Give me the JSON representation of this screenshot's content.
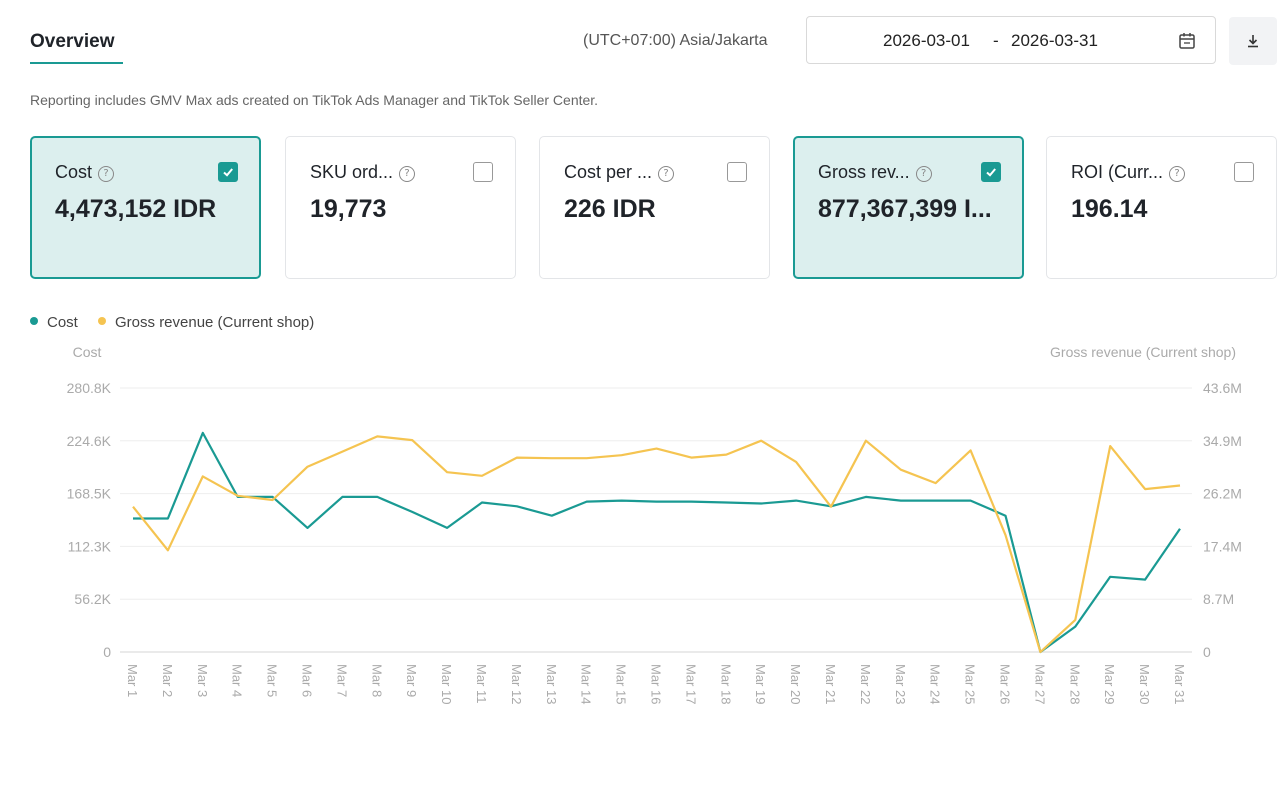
{
  "header": {
    "tab_title": "Overview",
    "timezone": "(UTC+07:00) Asia/Jakarta",
    "date_start": "2026-03-01",
    "date_separator": "-",
    "date_end": "2026-03-31"
  },
  "note": "Reporting includes GMV Max ads created on TikTok Ads Manager and TikTok Seller Center.",
  "cards": [
    {
      "label": "Cost",
      "value": "4,473,152 IDR",
      "checked": true
    },
    {
      "label": "SKU ord...",
      "value": "19,773",
      "checked": false
    },
    {
      "label": "Cost per ...",
      "value": "226 IDR",
      "checked": false
    },
    {
      "label": "Gross rev...",
      "value": "877,367,399 I...",
      "checked": true
    },
    {
      "label": "ROI (Curr...",
      "value": "196.14",
      "checked": false
    }
  ],
  "icons": {
    "calendar": "calendar-icon",
    "download": "download-icon",
    "help": "help-icon",
    "checkbox": "checkbox-icon"
  },
  "colors": {
    "accent": "#1a9a93",
    "cost_series": "#1a9a93",
    "revenue_series": "#f5c451",
    "card_active_bg": "#dcefee"
  },
  "chart_data": {
    "type": "line",
    "legend_position": "top-left",
    "grid": true,
    "left_axis_title": "Cost",
    "right_axis_title": "Gross revenue (Current shop)",
    "left_ticks": [
      "0",
      "56.2K",
      "112.3K",
      "168.5K",
      "224.6K",
      "280.8K"
    ],
    "right_ticks": [
      "0",
      "8.7M",
      "17.4M",
      "26.2M",
      "34.9M",
      "43.6M"
    ],
    "left_ylim": [
      0,
      280800
    ],
    "right_ylim": [
      0,
      43600000
    ],
    "categories": [
      "Mar 1",
      "Mar 2",
      "Mar 3",
      "Mar 4",
      "Mar 5",
      "Mar 6",
      "Mar 7",
      "Mar 8",
      "Mar 9",
      "Mar 10",
      "Mar 11",
      "Mar 12",
      "Mar 13",
      "Mar 14",
      "Mar 15",
      "Mar 16",
      "Mar 17",
      "Mar 18",
      "Mar 19",
      "Mar 20",
      "Mar 21",
      "Mar 22",
      "Mar 23",
      "Mar 24",
      "Mar 25",
      "Mar 26",
      "Mar 27",
      "Mar 28",
      "Mar 29",
      "Mar 30",
      "Mar 31"
    ],
    "series": [
      {
        "name": "Cost",
        "axis": "left",
        "color": "#1a9a93",
        "values": [
          142000,
          142000,
          233000,
          165000,
          165000,
          132000,
          165000,
          165000,
          149000,
          132000,
          159000,
          155000,
          145000,
          160000,
          161000,
          160000,
          160000,
          159000,
          158000,
          161000,
          155000,
          165000,
          161000,
          161000,
          161000,
          145000,
          0,
          27000,
          80000,
          77000,
          131000
        ]
      },
      {
        "name": "Gross revenue (Current shop)",
        "axis": "right",
        "color": "#f5c451",
        "values": [
          24000000,
          16800000,
          29000000,
          25800000,
          25100000,
          30600000,
          33100000,
          35600000,
          35000000,
          29700000,
          29100000,
          32100000,
          32000000,
          32000000,
          32500000,
          33600000,
          32100000,
          32600000,
          34900000,
          31400000,
          24000000,
          34900000,
          30100000,
          27900000,
          33300000,
          19300000,
          0,
          5300000,
          34000000,
          26900000,
          27500000
        ]
      }
    ]
  }
}
